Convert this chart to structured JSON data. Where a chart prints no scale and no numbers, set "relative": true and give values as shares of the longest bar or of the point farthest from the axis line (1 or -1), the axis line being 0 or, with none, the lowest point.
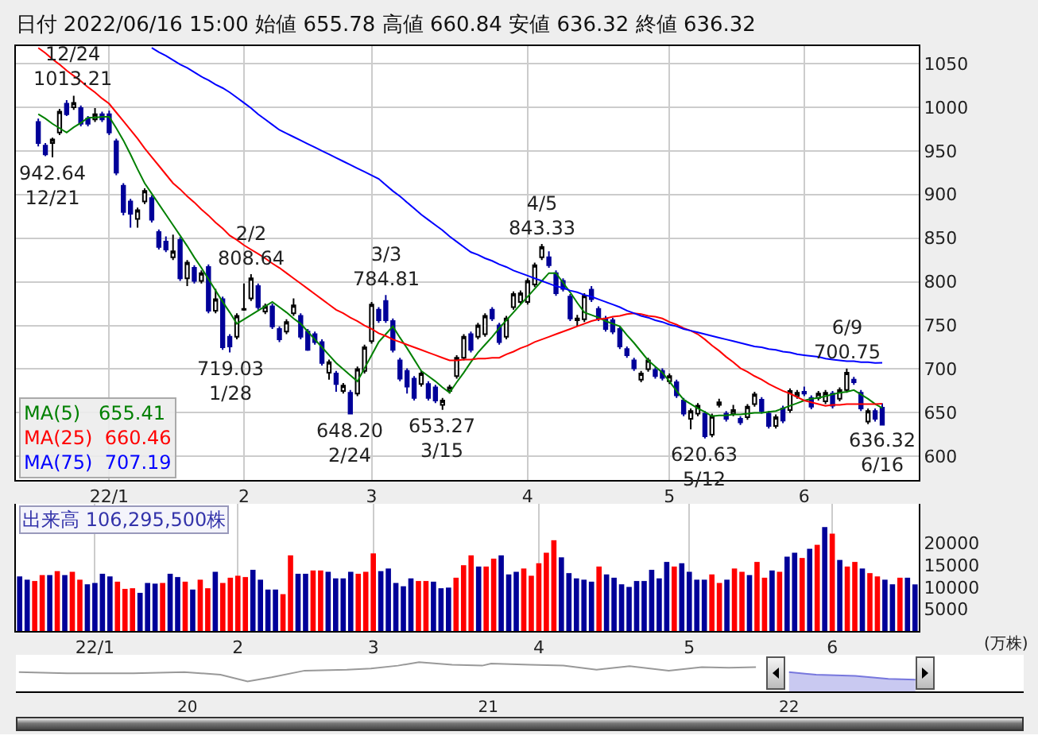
{
  "chart_data": [
    {
      "type": "candlestick",
      "title": "日付 2022/06/16 15:00 始値 655.78 高値 660.84 安値 636.32 終値 636.32",
      "categories": [
        null,
        null,
        null,
        null,
        null,
        null,
        null,
        null,
        null,
        null,
        "22/1",
        null,
        null,
        null,
        null,
        null,
        null,
        null,
        null,
        null,
        null,
        null,
        null,
        null,
        null,
        null,
        null,
        null,
        null,
        "2",
        null,
        null,
        null,
        null,
        null,
        null,
        null,
        null,
        null,
        null,
        null,
        null,
        null,
        null,
        null,
        null,
        null,
        "3",
        null,
        null,
        null,
        null,
        null,
        null,
        null,
        null,
        null,
        null,
        null,
        null,
        null,
        null,
        null,
        null,
        null,
        null,
        null,
        null,
        null,
        "4",
        null,
        null,
        null,
        null,
        null,
        null,
        null,
        null,
        null,
        null,
        null,
        null,
        null,
        null,
        null,
        null,
        null,
        null,
        null,
        "5",
        null,
        null,
        null,
        null,
        null,
        null,
        null,
        null,
        null,
        null,
        null,
        null,
        null,
        null,
        null,
        null,
        null,
        null,
        "6",
        null,
        null,
        null,
        null,
        null,
        null,
        null,
        null,
        null,
        null,
        null
      ],
      "ohlc": [
        [
          983,
          987,
          955,
          959
        ],
        [
          956,
          959,
          944,
          946
        ],
        [
          959,
          965,
          942.64,
          963
        ],
        [
          971,
          998,
          968,
          995
        ],
        [
          1004,
          1008,
          990,
          992
        ],
        [
          1000,
          1013.21,
          997,
          1005
        ],
        [
          999,
          1002,
          978,
          981
        ],
        [
          987,
          990,
          978,
          981
        ],
        [
          986,
          999,
          983,
          992
        ],
        [
          992,
          995,
          983,
          986
        ],
        [
          992,
          996,
          968,
          971
        ],
        [
          961,
          964,
          922,
          925
        ],
        [
          910,
          913,
          876,
          880
        ],
        [
          892,
          895,
          862,
          878
        ],
        [
          872,
          885,
          862,
          882
        ],
        [
          892,
          907,
          889,
          904
        ],
        [
          896,
          899,
          868,
          871
        ],
        [
          857,
          860,
          837,
          840
        ],
        [
          846,
          852,
          834,
          837
        ],
        [
          828,
          854,
          825,
          835
        ],
        [
          848,
          851,
          801,
          804
        ],
        [
          804,
          825,
          795,
          822
        ],
        [
          816,
          819,
          798,
          801
        ],
        [
          801,
          813,
          798,
          810
        ],
        [
          817,
          820,
          764,
          767
        ],
        [
          767,
          792,
          764,
          780
        ],
        [
          780,
          783,
          722,
          725
        ],
        [
          737,
          740,
          719.03,
          726
        ],
        [
          737,
          764,
          734,
          761
        ],
        [
          768,
          798,
          767,
          769
        ],
        [
          781,
          808.64,
          778,
          804
        ],
        [
          795,
          798,
          768,
          771
        ],
        [
          766,
          775,
          763,
          772
        ],
        [
          772,
          775,
          746,
          749
        ],
        [
          746,
          749,
          731,
          734
        ],
        [
          743,
          757,
          740,
          754
        ],
        [
          764,
          781,
          761,
          773
        ],
        [
          761,
          764,
          734,
          737
        ],
        [
          743,
          746,
          721,
          722
        ],
        [
          740,
          743,
          728,
          731
        ],
        [
          731,
          734,
          704,
          707
        ],
        [
          696,
          711,
          688,
          708
        ],
        [
          695,
          698,
          674,
          683
        ],
        [
          675,
          684,
          672,
          681
        ],
        [
          673,
          676,
          648.2,
          649
        ],
        [
          672,
          703,
          669,
          700
        ],
        [
          698,
          728,
          695,
          725
        ],
        [
          732,
          777,
          729,
          774
        ],
        [
          768,
          771,
          753,
          756
        ],
        [
          778,
          784.81,
          753,
          756
        ],
        [
          755,
          758,
          719,
          722
        ],
        [
          710,
          713,
          686,
          689
        ],
        [
          698,
          701,
          672,
          680
        ],
        [
          689,
          692,
          664,
          667
        ],
        [
          683,
          698,
          680,
          695
        ],
        [
          683,
          686,
          664,
          667
        ],
        [
          679,
          682,
          661,
          664
        ],
        [
          659,
          667,
          653.27,
          664
        ],
        [
          675,
          682,
          672,
          679
        ],
        [
          692,
          716,
          689,
          713
        ],
        [
          713,
          740,
          710,
          737
        ],
        [
          740,
          743,
          719,
          722
        ],
        [
          737,
          753,
          734,
          750
        ],
        [
          740,
          764,
          737,
          761
        ],
        [
          768,
          771,
          755,
          758
        ],
        [
          750,
          753,
          728,
          731
        ],
        [
          737,
          761,
          734,
          758
        ],
        [
          771,
          789,
          768,
          786
        ],
        [
          777,
          790,
          774,
          787
        ],
        [
          777,
          804,
          774,
          801
        ],
        [
          797,
          822,
          794,
          819
        ],
        [
          828,
          843.33,
          825,
          840
        ],
        [
          828,
          835,
          816,
          819
        ],
        [
          810,
          813,
          784,
          787
        ],
        [
          801,
          804,
          789,
          792
        ],
        [
          783,
          786,
          755,
          758
        ],
        [
          756,
          762,
          749,
          758
        ],
        [
          757,
          787,
          754,
          784
        ],
        [
          791,
          795,
          777,
          780
        ],
        [
          769,
          772,
          755,
          758
        ],
        [
          758,
          761,
          743,
          746
        ],
        [
          756,
          759,
          740,
          743
        ],
        [
          746,
          749,
          723,
          726
        ],
        [
          723,
          726,
          713,
          716
        ],
        [
          710,
          713,
          698,
          701
        ],
        [
          688,
          698,
          685,
          695
        ],
        [
          700,
          713,
          697,
          710
        ],
        [
          699,
          702,
          689,
          692
        ],
        [
          698,
          701,
          687,
          690
        ],
        [
          686,
          695,
          683,
          692
        ],
        [
          685,
          688,
          667,
          670
        ],
        [
          664,
          667,
          646,
          649
        ],
        [
          643,
          655,
          631,
          652
        ],
        [
          649,
          661,
          646,
          658
        ],
        [
          649,
          652,
          620.63,
          623
        ],
        [
          625,
          649,
          622,
          646
        ],
        [
          659,
          666,
          656,
          662
        ],
        [
          649,
          652,
          640,
          643
        ],
        [
          649,
          659,
          646,
          653
        ],
        [
          643,
          646,
          636,
          639
        ],
        [
          645,
          660,
          642,
          657
        ],
        [
          660,
          674,
          657,
          671
        ],
        [
          665,
          668,
          649,
          652
        ],
        [
          649,
          652,
          632,
          635
        ],
        [
          635,
          648,
          632,
          645
        ],
        [
          655,
          658,
          638,
          641
        ],
        [
          653,
          678,
          650,
          675
        ],
        [
          669,
          676,
          666,
          673
        ],
        [
          674,
          680,
          669,
          672
        ],
        [
          667,
          670,
          654,
          657
        ],
        [
          667,
          675,
          664,
          672
        ],
        [
          663,
          676,
          660,
          673
        ],
        [
          672,
          675,
          655,
          658
        ],
        [
          666,
          679,
          663,
          676
        ],
        [
          676,
          700.75,
          673,
          696
        ],
        [
          688,
          691,
          682,
          685
        ],
        [
          673,
          676,
          652,
          655
        ],
        [
          640,
          655,
          637,
          652
        ],
        [
          652,
          655,
          640,
          643
        ],
        [
          655.78,
          660.84,
          636.32,
          636.32
        ]
      ],
      "series": [
        {
          "type": "line",
          "name": "MA(5)   655.41",
          "color": "#008000",
          "values": [
            992,
            987,
            981,
            976,
            971,
            977,
            982,
            988,
            988,
            989,
            989,
            976,
            962,
            946,
            929,
            913,
            901,
            889,
            877,
            865,
            853,
            841,
            828,
            816,
            803,
            790,
            777,
            765,
            752,
            757,
            762,
            767,
            772,
            777,
            771,
            765,
            758,
            752,
            743,
            734,
            725,
            716,
            707,
            700,
            693,
            686,
            701,
            716,
            731,
            740,
            749,
            736,
            724,
            711,
            698,
            692,
            686,
            679,
            673,
            685,
            696,
            708,
            719,
            728,
            737,
            747,
            756,
            765,
            774,
            783,
            792,
            801,
            810,
            810,
            799,
            788,
            776,
            765,
            762,
            759,
            755,
            752,
            749,
            739,
            730,
            720,
            710,
            703,
            696,
            686,
            675,
            665,
            660,
            655,
            651,
            646,
            647,
            647,
            648,
            648,
            649,
            650,
            650,
            651,
            652,
            655,
            658,
            661,
            664,
            666,
            667,
            669,
            671,
            673,
            674,
            676,
            671,
            666,
            660,
            655.41
          ]
        },
        {
          "type": "line",
          "name": "MA(25)  660.46",
          "color": "#ff0000",
          "values": [
            1068,
            1062,
            1055,
            1049,
            1042,
            1036,
            1030,
            1023,
            1017,
            1010,
            1004,
            994,
            984,
            974,
            964,
            953,
            943,
            933,
            923,
            913,
            906,
            898,
            891,
            883,
            876,
            868,
            861,
            853,
            848,
            842,
            837,
            832,
            827,
            821,
            816,
            810,
            804,
            798,
            792,
            786,
            780,
            774,
            768,
            764,
            759,
            755,
            750,
            746,
            741,
            738,
            734,
            731,
            728,
            725,
            722,
            719,
            716,
            713,
            710,
            710,
            711,
            711,
            712,
            712,
            713,
            713,
            717,
            720,
            724,
            727,
            731,
            734,
            737,
            740,
            743,
            746,
            749,
            752,
            755,
            757,
            758,
            760,
            761,
            763,
            764,
            763,
            761,
            760,
            758,
            754,
            751,
            747,
            744,
            740,
            734,
            727,
            721,
            714,
            708,
            701,
            697,
            692,
            688,
            683,
            679,
            675,
            672,
            668,
            664,
            662,
            660,
            658,
            659,
            659,
            660,
            660,
            660,
            660,
            660,
            660.46
          ]
        },
        {
          "type": "line",
          "name": "MA(75)  707.19",
          "color": "#0000ff",
          "values": [
            null,
            null,
            null,
            null,
            null,
            null,
            null,
            null,
            null,
            null,
            null,
            null,
            null,
            null,
            null,
            null,
            1068,
            1063,
            1059,
            1054,
            1049,
            1045,
            1040,
            1035,
            1031,
            1026,
            1022,
            1017,
            1011,
            1005,
            999,
            992,
            986,
            980,
            974,
            970,
            966,
            962,
            958,
            954,
            950,
            946,
            942,
            938,
            934,
            930,
            926,
            922,
            918,
            911,
            904,
            898,
            891,
            884,
            877,
            871,
            865,
            859,
            852,
            846,
            840,
            834,
            831,
            827,
            824,
            820,
            817,
            813,
            810,
            807,
            804,
            801,
            798,
            795,
            793,
            790,
            788,
            785,
            783,
            780,
            777,
            774,
            771,
            767,
            764,
            761,
            759,
            756,
            754,
            751,
            749,
            746,
            744,
            742,
            740,
            738,
            736,
            734,
            732,
            730,
            728,
            726,
            725,
            723,
            722,
            720,
            719,
            717,
            716,
            715,
            714,
            712,
            711,
            710,
            709,
            709,
            708,
            708,
            707,
            707.19
          ]
        }
      ],
      "ylim": [
        573,
        1070
      ],
      "yticks": [
        600,
        650,
        700,
        750,
        800,
        850,
        900,
        950,
        1000,
        1050
      ],
      "grid": true,
      "legend": "bottom left",
      "annotations": [
        {
          "text": "12/24\n1013.21",
          "y": 1013.21
        },
        {
          "text": "942.64\n12/21",
          "y": 942.64
        },
        {
          "text": "2/2\n808.64",
          "y": 808.64
        },
        {
          "text": "719.03\n1/28",
          "y": 719.03
        },
        {
          "text": "3/3\n784.81",
          "y": 784.81
        },
        {
          "text": "648.20\n2/24",
          "y": 648.2
        },
        {
          "text": "653.27\n3/15",
          "y": 653.27
        },
        {
          "text": "4/5\n843.33",
          "y": 843.33
        },
        {
          "text": "620.63\n5/12",
          "y": 620.63
        },
        {
          "text": "6/9\n700.75",
          "y": 700.75
        },
        {
          "text": "636.32\n6/16",
          "y": 636.32
        }
      ]
    },
    {
      "type": "bar",
      "ylabel": "(万株)",
      "annotations": [
        "出来高 106,295,500株"
      ],
      "categories": [
        null,
        null,
        null,
        null,
        null,
        null,
        null,
        null,
        null,
        null,
        "22/1",
        null,
        null,
        null,
        null,
        null,
        null,
        null,
        null,
        null,
        null,
        null,
        null,
        null,
        null,
        null,
        null,
        null,
        null,
        "2",
        null,
        null,
        null,
        null,
        null,
        null,
        null,
        null,
        null,
        null,
        null,
        null,
        null,
        null,
        null,
        null,
        null,
        "3",
        null,
        null,
        null,
        null,
        null,
        null,
        null,
        null,
        null,
        null,
        null,
        null,
        null,
        null,
        null,
        null,
        null,
        null,
        null,
        null,
        null,
        "4",
        null,
        null,
        null,
        null,
        null,
        null,
        null,
        null,
        null,
        null,
        null,
        null,
        null,
        null,
        null,
        null,
        null,
        null,
        null,
        "5",
        null,
        null,
        null,
        null,
        null,
        null,
        null,
        null,
        null,
        null,
        null,
        null,
        null,
        null,
        null,
        null,
        null,
        null,
        "6",
        null,
        null,
        null,
        null,
        null,
        null,
        null,
        null,
        null,
        null,
        null
      ],
      "values": [
        12450,
        11700,
        11400,
        12750,
        12750,
        13650,
        12750,
        13500,
        11700,
        10650,
        10950,
        13050,
        12450,
        11250,
        9600,
        9750,
        8700,
        10950,
        10800,
        10950,
        13050,
        12300,
        11250,
        9450,
        11700,
        9750,
        13500,
        10950,
        12150,
        12600,
        12300,
        13950,
        11700,
        9450,
        9450,
        8400,
        17250,
        13050,
        13050,
        13800,
        13800,
        13500,
        12000,
        12000,
        13500,
        13050,
        13500,
        17700,
        13650,
        14250,
        10950,
        10200,
        12000,
        11400,
        11400,
        11250,
        9750,
        9900,
        12150,
        15000,
        17250,
        14700,
        14700,
        16500,
        17250,
        12900,
        13500,
        14250,
        12600,
        15450,
        17850,
        20700,
        16800,
        13200,
        12000,
        11700,
        11250,
        14700,
        12900,
        12150,
        10650,
        10050,
        11400,
        11400,
        13950,
        12000,
        15750,
        14700,
        15450,
        13500,
        11700,
        11700,
        12900,
        10950,
        11700,
        14250,
        13500,
        12750,
        15750,
        12150,
        13800,
        13500,
        16950,
        17850,
        16650,
        18750,
        19650,
        23700,
        22200,
        16200,
        14700,
        15750,
        14250,
        13200,
        12450,
        11700,
        10650,
        12150,
        12150,
        10629.55
      ],
      "colors": [
        "#000099",
        "#000099",
        "#ff0000",
        "#ff0000",
        "#000099",
        "#ff0000",
        "#000099",
        "#ff0000",
        "#ff0000",
        "#000099",
        "#000099",
        "#000099",
        "#000099",
        "#ff0000",
        "#ff0000",
        "#ff0000",
        "#000099",
        "#000099",
        "#000099",
        "#ff0000",
        "#000099",
        "#000099",
        "#ff0000",
        "#000099",
        "#ff0000",
        "#ff0000",
        "#000099",
        "#ff0000",
        "#ff0000",
        "#ff0000",
        "#ff0000",
        "#000099",
        "#000099",
        "#000099",
        "#000099",
        "#ff0000",
        "#ff0000",
        "#000099",
        "#000099",
        "#ff0000",
        "#ff0000",
        "#000099",
        "#000099",
        "#000099",
        "#000099",
        "#ff0000",
        "#ff0000",
        "#ff0000",
        "#000099",
        "#000099",
        "#000099",
        "#000099",
        "#000099",
        "#ff0000",
        "#ff0000",
        "#000099",
        "#000099",
        "#000099",
        "#ff0000",
        "#ff0000",
        "#ff0000",
        "#000099",
        "#ff0000",
        "#ff0000",
        "#000099",
        "#000099",
        "#000099",
        "#ff0000",
        "#ff0000",
        "#ff0000",
        "#ff0000",
        "#ff0000",
        "#000099",
        "#000099",
        "#000099",
        "#000099",
        "#000099",
        "#ff0000",
        "#000099",
        "#000099",
        "#000099",
        "#000099",
        "#000099",
        "#000099",
        "#000099",
        "#000099",
        "#000099",
        "#ff0000",
        "#000099",
        "#000099",
        "#000099",
        "#000099",
        "#ff0000",
        "#ff0000",
        "#000099",
        "#ff0000",
        "#ff0000",
        "#000099",
        "#ff0000",
        "#ff0000",
        "#000099",
        "#ff0000",
        "#000099",
        "#000099",
        "#ff0000",
        "#000099",
        "#ff0000",
        "#000099",
        "#ff0000",
        "#000099",
        "#ff0000",
        "#ff0000",
        "#000099",
        "#ff0000",
        "#ff0000",
        "#000099",
        "#000099",
        "#ff0000",
        "#000099",
        "#000099"
      ],
      "ylim": [
        0,
        29000
      ],
      "yticks": [
        5000,
        10000,
        15000,
        20000
      ],
      "grid": "x"
    },
    {
      "type": "line",
      "relative": true,
      "xlim": [
        2019.43,
        2022.78
      ],
      "xticks": [
        {
          "value": 2020,
          "label": "20"
        },
        {
          "value": 2021,
          "label": "21"
        },
        {
          "value": 2022,
          "label": "22"
        }
      ],
      "series": [
        {
          "type": "line",
          "color": "#999999",
          "x": [
            2019.44,
            2019.6,
            2019.82,
            2019.99,
            2020.11,
            2020.2,
            2020.28,
            2020.39,
            2020.53,
            2020.61,
            2020.7,
            2020.77,
            2020.88,
            2020.98,
            2021.01,
            2021.14,
            2021.25,
            2021.36,
            2021.47,
            2021.6,
            2021.71,
            2021.8,
            2021.89
          ],
          "values": [
            0.66,
            0.62,
            0.62,
            0.66,
            0.57,
            0.34,
            0.48,
            0.71,
            0.74,
            0.78,
            0.88,
            1,
            0.91,
            0.88,
            0.95,
            0.91,
            0.88,
            0.74,
            0.86,
            0.71,
            0.83,
            0.81,
            0.83
          ]
        },
        {
          "type": "area",
          "color": "#7777dd",
          "x": [
            2022.0,
            2022.09,
            2022.22,
            2022.33,
            2022.42
          ],
          "values": [
            0.66,
            0.57,
            0.53,
            0.43,
            0.4
          ]
        }
      ]
    }
  ]
}
